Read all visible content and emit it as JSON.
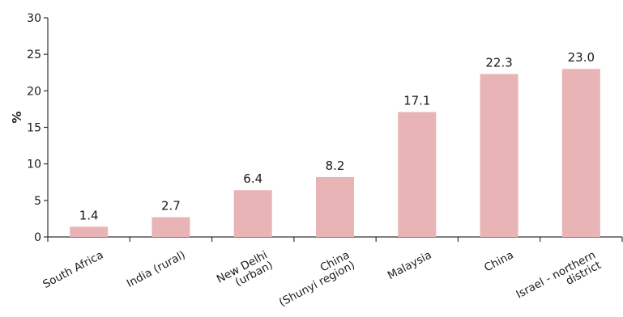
{
  "chart_data": {
    "type": "bar",
    "title": "",
    "xlabel": "",
    "ylabel": "%",
    "ylim": [
      0,
      30
    ],
    "yticks": [
      0,
      5,
      10,
      15,
      20,
      25,
      30
    ],
    "grid": false,
    "categories": [
      [
        "South Africa"
      ],
      [
        "India (rural)"
      ],
      [
        "New Delhi",
        "(urban)"
      ],
      [
        "China",
        "(Shunyi region)"
      ],
      [
        "Malaysia"
      ],
      [
        "China"
      ],
      [
        "Israel - northern",
        "district"
      ]
    ],
    "values": [
      1.4,
      2.7,
      6.4,
      8.2,
      17.1,
      22.3,
      23.0
    ],
    "data_labels": [
      "1.4",
      "2.7",
      "6.4",
      "8.2",
      "17.1",
      "22.3",
      "23.0"
    ],
    "bar_color": "#e8b4b6",
    "axis_color": "#333333"
  }
}
